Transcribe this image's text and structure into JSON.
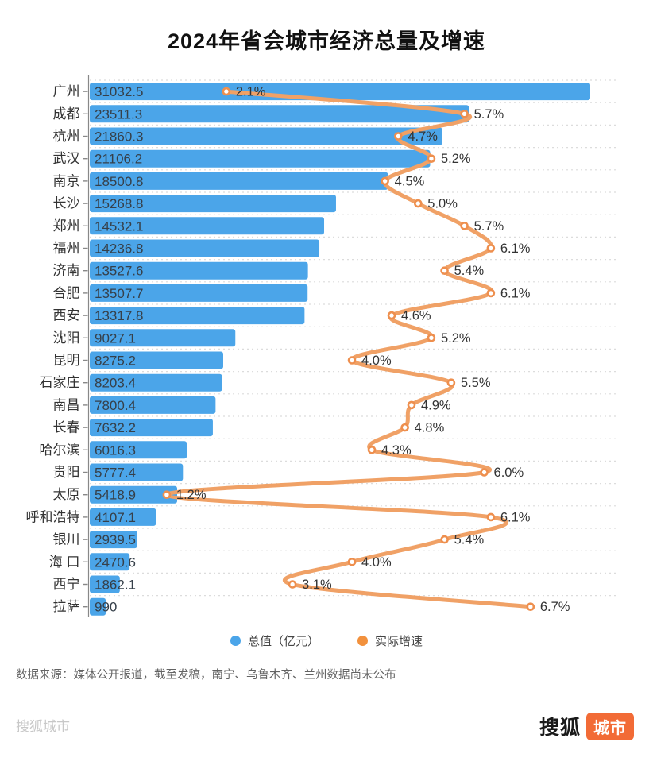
{
  "title": "2024年省会城市经济总量及增速",
  "legend": [
    {
      "label": "总值（亿元）",
      "color": "#4BA5E9"
    },
    {
      "label": "实际增速",
      "color": "#F2913D"
    }
  ],
  "footer": {
    "source": "数据来源：媒体公开报道，截至发稿，南宁、乌鲁木齐、兰州数据尚未公布"
  },
  "watermark": "搜狐城市",
  "brand": {
    "name": "搜狐",
    "tag": "城市",
    "tag_bg": "#f26b36"
  },
  "colors": {
    "bar": "#4BA5E9",
    "line": "#F0A166",
    "marker_stroke": "#EE8F4E",
    "marker_fill": "#FFFFFF",
    "bar_value_text": "#36404A",
    "category_text": "#333333",
    "rate_text": "#333333",
    "gridline": "#DCDCDC",
    "axis": "#888888"
  },
  "chart_data": {
    "type": "bar",
    "orientation": "horizontal",
    "title": "2024年省会城市经济总量及增速",
    "categories": [
      "广州",
      "成都",
      "杭州",
      "武汉",
      "南京",
      "长沙",
      "郑州",
      "福州",
      "济南",
      "合肥",
      "西安",
      "沈阳",
      "昆明",
      "石家庄",
      "南昌",
      "长春",
      "哈尔滨",
      "贵阳",
      "太原",
      "呼和浩特",
      "银川",
      "海 口",
      "西宁",
      "拉萨"
    ],
    "series": [
      {
        "name": "总值（亿元）",
        "type": "bar",
        "color": "#4BA5E9",
        "values": [
          31032.5,
          23511.3,
          21860.3,
          21106.2,
          18500.8,
          15268.8,
          14532.1,
          14236.8,
          13527.6,
          13507.7,
          13317.8,
          9027.1,
          8275.2,
          8203.4,
          7800.4,
          7632.2,
          6016.3,
          5777.4,
          5418.9,
          4107.1,
          2939.5,
          2470.6,
          1862.1,
          990
        ]
      },
      {
        "name": "实际增速",
        "type": "line",
        "color": "#F0A166",
        "unit": "%",
        "values": [
          2.1,
          5.7,
          4.7,
          5.2,
          4.5,
          5.0,
          5.7,
          6.1,
          5.4,
          6.1,
          4.6,
          5.2,
          4.0,
          5.5,
          4.9,
          4.8,
          4.3,
          6.0,
          1.2,
          6.1,
          5.4,
          4.0,
          3.1,
          6.7
        ]
      }
    ],
    "bar_axis_range": [
      0,
      32700
    ],
    "rate_axis_range": [
      0,
      8.0
    ],
    "grid": "dashed horizontal row separators",
    "legend_position": "bottom-center",
    "value_labels": "inside-bar-left",
    "rate_labels": "right-of-marker"
  }
}
